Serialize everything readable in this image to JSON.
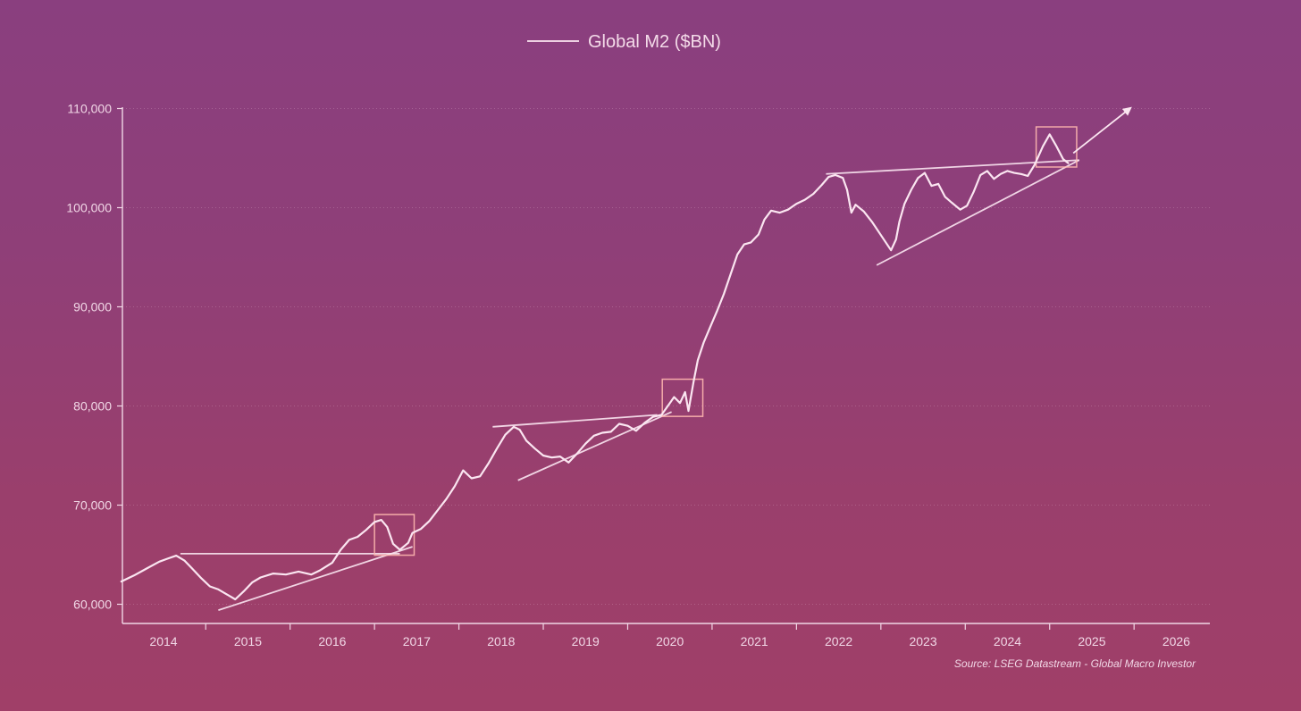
{
  "chart_data": {
    "type": "line",
    "title": "",
    "xlabel": "",
    "ylabel": "",
    "legend": {
      "placement": "top-center",
      "entries": [
        "Global M2 ($BN)"
      ]
    },
    "source": "Source: LSEG Datastream - Global Macro Investor",
    "xlim": [
      2013.5,
      2026.9
    ],
    "ylim": [
      58000,
      110500
    ],
    "x_ticks": [
      "2014",
      "2015",
      "2016",
      "2017",
      "2018",
      "2019",
      "2020",
      "2021",
      "2022",
      "2023",
      "2024",
      "2025",
      "2026"
    ],
    "y_ticks": [
      60000,
      70000,
      80000,
      90000,
      100000,
      110000
    ],
    "y_tick_labels": [
      "60,000",
      "70,000",
      "80,000",
      "90,000",
      "100,000",
      "110,000"
    ],
    "grid": "horizontal dotted",
    "colors": {
      "line": "#fbe6f1",
      "annotation": "#fbe6f1",
      "box": "#ffb8b0",
      "axis": "#f1d7e6"
    },
    "series": [
      {
        "name": "Global M2 ($BN)",
        "points": [
          [
            2013.5,
            62300
          ],
          [
            2013.65,
            62900
          ],
          [
            2013.8,
            63600
          ],
          [
            2013.95,
            64300
          ],
          [
            2014.05,
            64600
          ],
          [
            2014.15,
            64900
          ],
          [
            2014.25,
            64400
          ],
          [
            2014.35,
            63500
          ],
          [
            2014.45,
            62600
          ],
          [
            2014.55,
            61800
          ],
          [
            2014.65,
            61500
          ],
          [
            2014.75,
            61000
          ],
          [
            2014.85,
            60500
          ],
          [
            2014.95,
            61300
          ],
          [
            2015.05,
            62200
          ],
          [
            2015.15,
            62700
          ],
          [
            2015.3,
            63100
          ],
          [
            2015.45,
            63000
          ],
          [
            2015.6,
            63300
          ],
          [
            2015.75,
            63000
          ],
          [
            2015.85,
            63400
          ],
          [
            2016.0,
            64200
          ],
          [
            2016.1,
            65500
          ],
          [
            2016.2,
            66500
          ],
          [
            2016.3,
            66800
          ],
          [
            2016.4,
            67500
          ],
          [
            2016.5,
            68300
          ],
          [
            2016.58,
            68500
          ],
          [
            2016.65,
            67800
          ],
          [
            2016.72,
            66100
          ],
          [
            2016.8,
            65500
          ],
          [
            2016.9,
            66200
          ],
          [
            2016.95,
            67200
          ],
          [
            2017.05,
            67600
          ],
          [
            2017.15,
            68400
          ],
          [
            2017.25,
            69500
          ],
          [
            2017.35,
            70600
          ],
          [
            2017.45,
            71900
          ],
          [
            2017.55,
            73500
          ],
          [
            2017.65,
            72700
          ],
          [
            2017.75,
            72900
          ],
          [
            2017.85,
            74200
          ],
          [
            2017.95,
            75700
          ],
          [
            2018.05,
            77100
          ],
          [
            2018.15,
            77900
          ],
          [
            2018.22,
            77600
          ],
          [
            2018.3,
            76500
          ],
          [
            2018.4,
            75700
          ],
          [
            2018.5,
            75000
          ],
          [
            2018.6,
            74800
          ],
          [
            2018.7,
            74900
          ],
          [
            2018.8,
            74300
          ],
          [
            2018.9,
            75200
          ],
          [
            2019.0,
            76200
          ],
          [
            2019.1,
            77000
          ],
          [
            2019.2,
            77300
          ],
          [
            2019.3,
            77400
          ],
          [
            2019.4,
            78200
          ],
          [
            2019.5,
            78000
          ],
          [
            2019.6,
            77500
          ],
          [
            2019.7,
            78300
          ],
          [
            2019.8,
            78900
          ],
          [
            2019.9,
            79100
          ],
          [
            2020.0,
            80300
          ],
          [
            2020.05,
            80900
          ],
          [
            2020.12,
            80300
          ],
          [
            2020.18,
            81400
          ],
          [
            2020.22,
            79500
          ],
          [
            2020.28,
            82400
          ],
          [
            2020.33,
            84600
          ],
          [
            2020.4,
            86400
          ],
          [
            2020.48,
            88000
          ],
          [
            2020.56,
            89600
          ],
          [
            2020.64,
            91300
          ],
          [
            2020.72,
            93300
          ],
          [
            2020.8,
            95300
          ],
          [
            2020.88,
            96300
          ],
          [
            2020.96,
            96500
          ],
          [
            2021.05,
            97300
          ],
          [
            2021.12,
            98800
          ],
          [
            2021.2,
            99700
          ],
          [
            2021.3,
            99500
          ],
          [
            2021.4,
            99800
          ],
          [
            2021.5,
            100400
          ],
          [
            2021.6,
            100800
          ],
          [
            2021.7,
            101400
          ],
          [
            2021.8,
            102300
          ],
          [
            2021.88,
            103100
          ],
          [
            2021.96,
            103300
          ],
          [
            2022.05,
            103000
          ],
          [
            2022.1,
            101800
          ],
          [
            2022.15,
            99500
          ],
          [
            2022.2,
            100300
          ],
          [
            2022.3,
            99600
          ],
          [
            2022.4,
            98500
          ],
          [
            2022.48,
            97500
          ],
          [
            2022.55,
            96600
          ],
          [
            2022.62,
            95700
          ],
          [
            2022.68,
            96800
          ],
          [
            2022.72,
            98600
          ],
          [
            2022.78,
            100400
          ],
          [
            2022.86,
            101800
          ],
          [
            2022.94,
            103000
          ],
          [
            2023.02,
            103500
          ],
          [
            2023.1,
            102200
          ],
          [
            2023.18,
            102400
          ],
          [
            2023.26,
            101100
          ],
          [
            2023.34,
            100500
          ],
          [
            2023.44,
            99800
          ],
          [
            2023.52,
            100200
          ],
          [
            2023.6,
            101600
          ],
          [
            2023.68,
            103300
          ],
          [
            2023.76,
            103700
          ],
          [
            2023.84,
            102900
          ],
          [
            2023.92,
            103400
          ],
          [
            2024.0,
            103700
          ],
          [
            2024.08,
            103500
          ],
          [
            2024.16,
            103400
          ],
          [
            2024.24,
            103200
          ],
          [
            2024.32,
            104300
          ],
          [
            2024.42,
            106200
          ],
          [
            2024.5,
            107400
          ],
          [
            2024.58,
            106200
          ],
          [
            2024.66,
            104900
          ],
          [
            2024.72,
            104500
          ]
        ]
      }
    ],
    "annotations": {
      "lines": [
        [
          [
            2014.2,
            65100
          ],
          [
            2016.8,
            65100
          ]
        ],
        [
          [
            2014.65,
            59400
          ],
          [
            2016.95,
            65800
          ]
        ],
        [
          [
            2017.9,
            77900
          ],
          [
            2019.85,
            79100
          ]
        ],
        [
          [
            2018.2,
            72500
          ],
          [
            2020.02,
            79400
          ]
        ],
        [
          [
            2021.85,
            103400
          ],
          [
            2024.85,
            104800
          ]
        ],
        [
          [
            2022.45,
            94200
          ],
          [
            2024.85,
            104800
          ]
        ]
      ],
      "arrow": [
        [
          2024.78,
          105500
        ],
        [
          2025.45,
          110000
        ]
      ],
      "boxes": [
        [
          [
            2016.5,
            64950
          ],
          [
            2016.97,
            69050
          ]
        ],
        [
          [
            2019.91,
            78950
          ],
          [
            2020.39,
            82700
          ]
        ],
        [
          [
            2024.34,
            104100
          ],
          [
            2024.82,
            108150
          ]
        ]
      ]
    }
  }
}
